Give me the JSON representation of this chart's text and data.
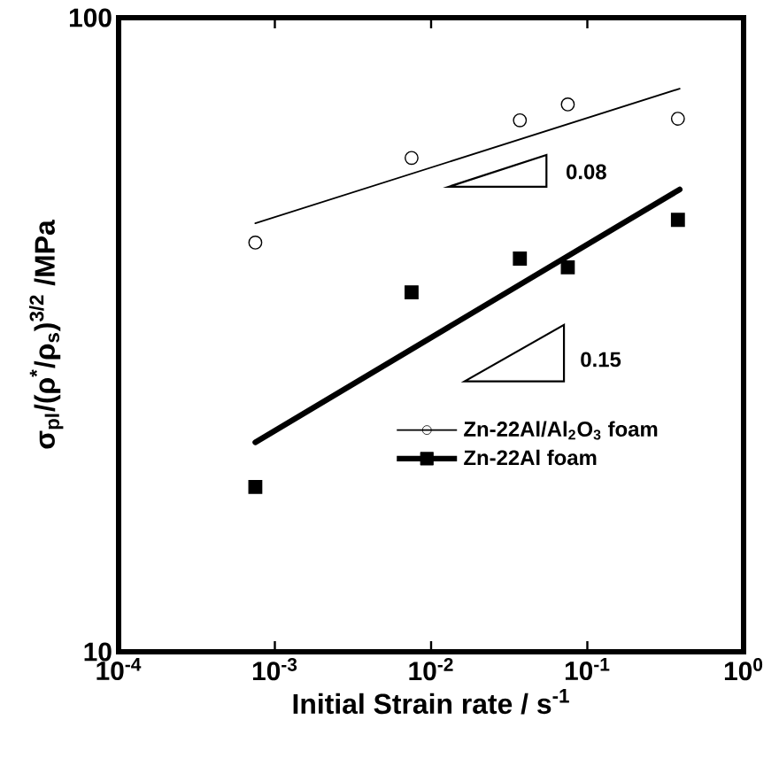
{
  "chart_data": {
    "type": "scatter",
    "xlabel": "Initial Strain rate / s$^{-1}$",
    "ylabel": "σ$_{pl}$/(ρ$^{*}$/ρ$_{s}$)$^{3/2}$ /MPa",
    "log": "xy",
    "xlim": [
      0.0001,
      1
    ],
    "ylim": [
      10,
      100
    ],
    "xticks": [
      {
        "value": 0.0001,
        "label": "10$^{-4}$"
      },
      {
        "value": 0.001,
        "label": "10$^{-3}$"
      },
      {
        "value": 0.01,
        "label": "10$^{-2}$"
      },
      {
        "value": 0.1,
        "label": "10$^{-1}$"
      },
      {
        "value": 1,
        "label": "10$^{0}$"
      }
    ],
    "yticks": [
      10,
      100
    ],
    "grid": false,
    "legend": "right",
    "annotations": [
      "0.08",
      "0.15"
    ],
    "series": [
      {
        "name": "Zn-22Al/Al$_{2}$O$_{3}$ foam",
        "marker": "circle",
        "color": "#000000",
        "x": [
          0.00075,
          0.0075,
          0.037,
          0.075,
          0.38
        ],
        "values": [
          44.2,
          60.1,
          68.9,
          73,
          69.3
        ]
      },
      {
        "name": "Zn-22Al foam",
        "marker": "square",
        "color": "#000000",
        "x": [
          0.00075,
          0.0075,
          0.037,
          0.075,
          0.38
        ],
        "values": [
          18.2,
          36.9,
          41.7,
          40.4,
          48
        ]
      },
      {
        "type": "line",
        "color": "#000000",
        "x": [
          0.00075,
          0.39
        ],
        "values": [
          47.4,
          77.3
        ]
      },
      {
        "type": "line",
        "color": "#000000",
        "x": [
          0.00075,
          0.39
        ],
        "values": [
          21.4,
          53.6
        ]
      }
    ]
  }
}
